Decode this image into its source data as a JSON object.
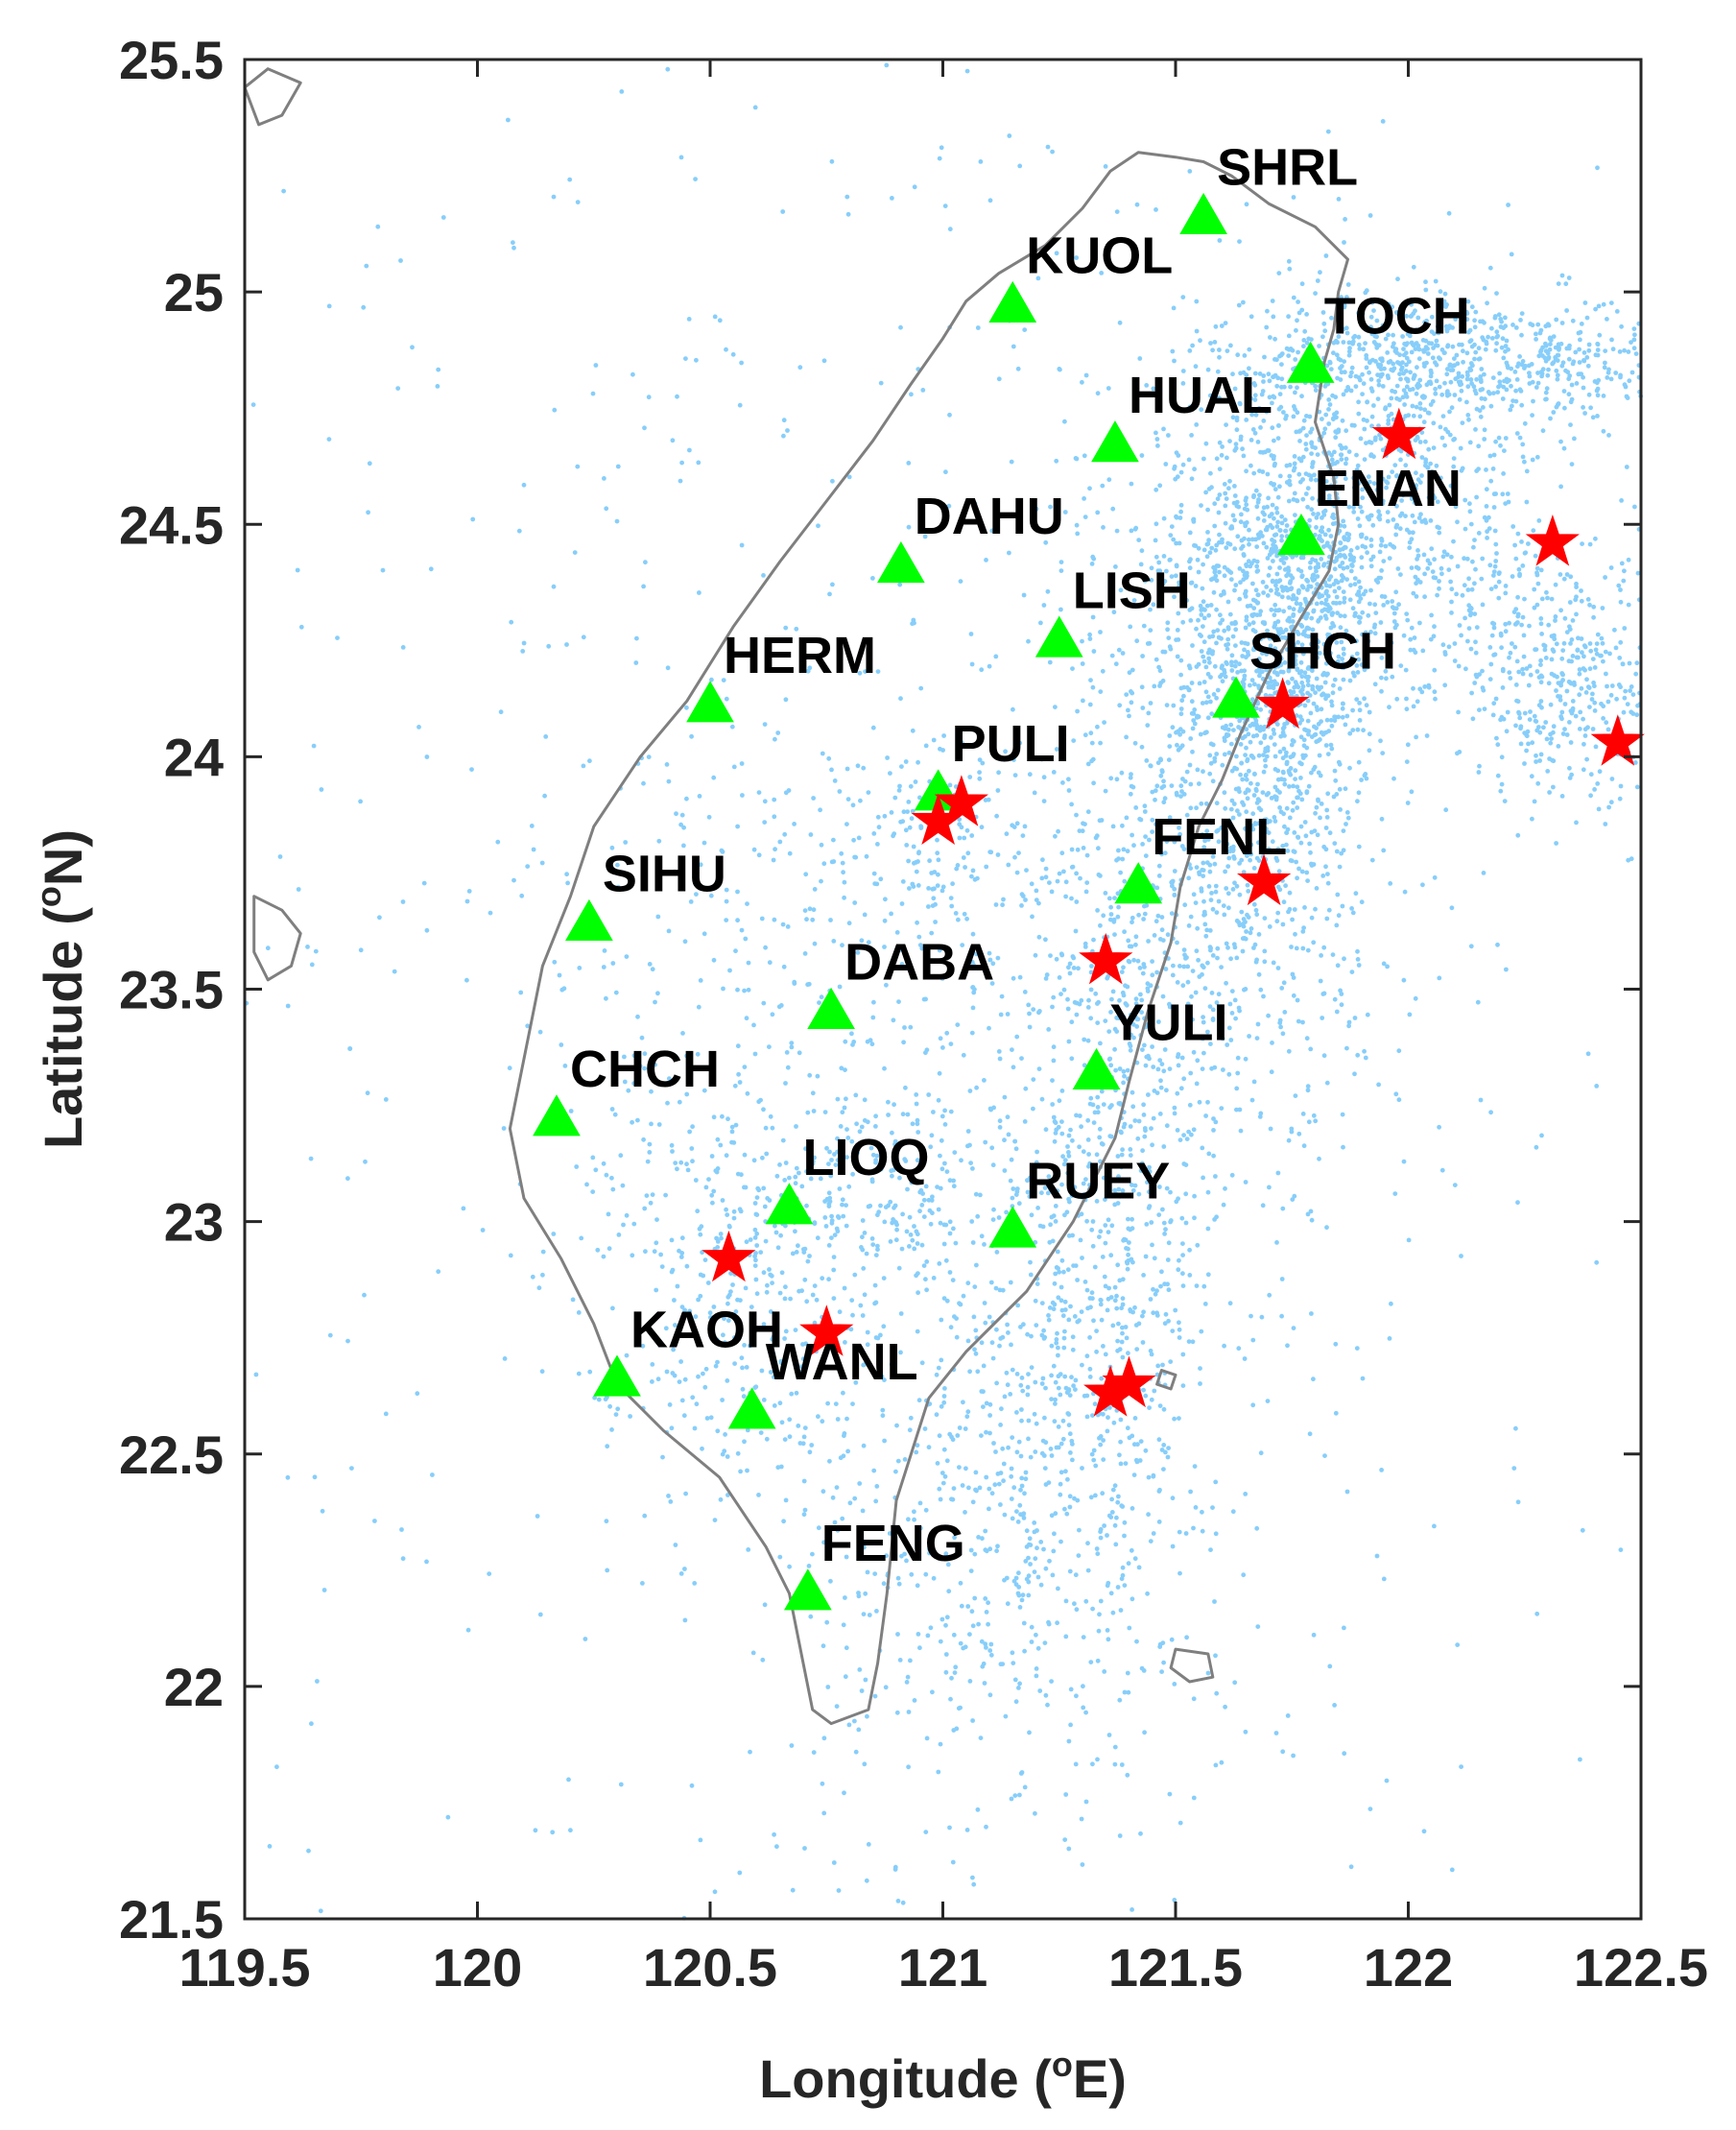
{
  "map": {
    "x_axis": {
      "label": "Longitude",
      "unit": "E",
      "unit_sup": "o",
      "min": 119.5,
      "max": 122.5,
      "ticks": [
        "119.5",
        "120",
        "120.5",
        "121",
        "121.5",
        "122",
        "122.5"
      ]
    },
    "y_axis": {
      "label": "Latitude",
      "unit": "N",
      "unit_sup": "o",
      "min": 21.5,
      "max": 25.5,
      "ticks": [
        "21.5",
        "22",
        "22.5",
        "23",
        "23.5",
        "24",
        "24.5",
        "25",
        "25.5"
      ]
    },
    "colors": {
      "coastline": "#7f7f7f",
      "seismicity": "#87cefa",
      "station": "#00ff00",
      "epicenter": "#ff0000",
      "axis": "#262626"
    },
    "stations": [
      {
        "name": "SHRL",
        "lon": 121.56,
        "lat": 25.16
      },
      {
        "name": "KUOL",
        "lon": 121.15,
        "lat": 24.97
      },
      {
        "name": "TOCH",
        "lon": 121.79,
        "lat": 24.84
      },
      {
        "name": "HUAL",
        "lon": 121.37,
        "lat": 24.67
      },
      {
        "name": "ENAN",
        "lon": 121.77,
        "lat": 24.47
      },
      {
        "name": "DAHU",
        "lon": 120.91,
        "lat": 24.41
      },
      {
        "name": "LISH",
        "lon": 121.25,
        "lat": 24.25
      },
      {
        "name": "SHCH",
        "lon": 121.63,
        "lat": 24.12
      },
      {
        "name": "HERM",
        "lon": 120.5,
        "lat": 24.11
      },
      {
        "name": "PULI",
        "lon": 120.99,
        "lat": 23.92
      },
      {
        "name": "FENL",
        "lon": 121.42,
        "lat": 23.72
      },
      {
        "name": "SIHU",
        "lon": 120.24,
        "lat": 23.64
      },
      {
        "name": "DABA",
        "lon": 120.76,
        "lat": 23.45
      },
      {
        "name": "YULI",
        "lon": 121.33,
        "lat": 23.32
      },
      {
        "name": "CHCH",
        "lon": 120.17,
        "lat": 23.22
      },
      {
        "name": "LIOQ",
        "lon": 120.67,
        "lat": 23.03
      },
      {
        "name": "RUEY",
        "lon": 121.15,
        "lat": 22.98
      },
      {
        "name": "KAOH",
        "lon": 120.3,
        "lat": 22.66
      },
      {
        "name": "WANL",
        "lon": 120.59,
        "lat": 22.59
      },
      {
        "name": "FENG",
        "lon": 120.71,
        "lat": 22.2
      }
    ],
    "epicenters": [
      {
        "lon": 121.98,
        "lat": 24.69
      },
      {
        "lon": 122.31,
        "lat": 24.46
      },
      {
        "lon": 121.73,
        "lat": 24.11
      },
      {
        "lon": 122.45,
        "lat": 24.03
      },
      {
        "lon": 121.04,
        "lat": 23.9
      },
      {
        "lon": 120.99,
        "lat": 23.86
      },
      {
        "lon": 121.69,
        "lat": 23.73
      },
      {
        "lon": 121.35,
        "lat": 23.56
      },
      {
        "lon": 120.54,
        "lat": 22.92
      },
      {
        "lon": 120.75,
        "lat": 22.76
      },
      {
        "lon": 121.4,
        "lat": 22.65
      },
      {
        "lon": 121.36,
        "lat": 22.63
      }
    ],
    "seismicity_clusters": [
      {
        "lon": 121.72,
        "lat": 24.15,
        "slon": 0.1,
        "slat": 0.22,
        "n": 900
      },
      {
        "lon": 121.78,
        "lat": 24.45,
        "slon": 0.12,
        "slat": 0.15,
        "n": 500
      },
      {
        "lon": 122.15,
        "lat": 24.85,
        "slon": 0.3,
        "slat": 0.07,
        "n": 700
      },
      {
        "lon": 121.95,
        "lat": 24.75,
        "slon": 0.2,
        "slat": 0.15,
        "n": 400
      },
      {
        "lon": 122.35,
        "lat": 24.15,
        "slon": 0.14,
        "slat": 0.12,
        "n": 400
      },
      {
        "lon": 122.05,
        "lat": 24.4,
        "slon": 0.15,
        "slat": 0.15,
        "n": 300
      },
      {
        "lon": 121.6,
        "lat": 23.65,
        "slon": 0.15,
        "slat": 0.25,
        "n": 500
      },
      {
        "lon": 121.38,
        "lat": 23.2,
        "slon": 0.1,
        "slat": 0.35,
        "n": 400
      },
      {
        "lon": 121.3,
        "lat": 22.65,
        "slon": 0.15,
        "slat": 0.3,
        "n": 400
      },
      {
        "lon": 121.05,
        "lat": 22.3,
        "slon": 0.2,
        "slat": 0.35,
        "n": 400
      },
      {
        "lon": 120.85,
        "lat": 23.05,
        "slon": 0.2,
        "slat": 0.15,
        "n": 250
      },
      {
        "lon": 120.55,
        "lat": 22.85,
        "slon": 0.15,
        "slat": 0.2,
        "n": 250
      },
      {
        "lon": 121.0,
        "lat": 23.8,
        "slon": 0.18,
        "slat": 0.15,
        "n": 200
      },
      {
        "lon": 121.5,
        "lat": 24.3,
        "slon": 0.15,
        "slat": 0.2,
        "n": 200
      },
      {
        "lon": 120.8,
        "lat": 23.4,
        "slon": 0.3,
        "slat": 0.4,
        "n": 250
      },
      {
        "lon": 121.0,
        "lat": 23.5,
        "slon": 0.8,
        "slat": 1.2,
        "n": 1000
      }
    ]
  }
}
